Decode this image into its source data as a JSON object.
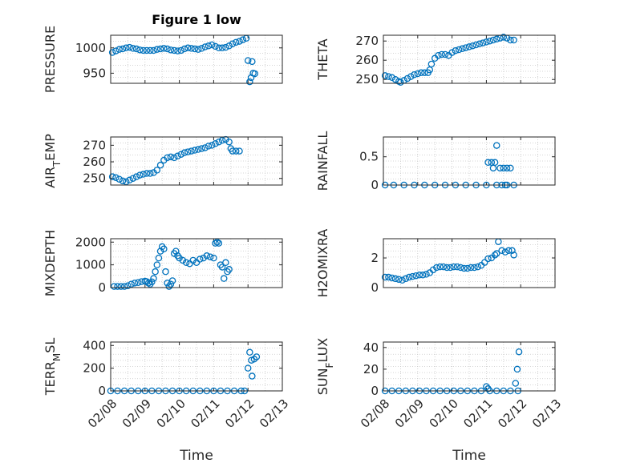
{
  "figure": {
    "title": "Figure 1 low",
    "marker_color": "#0072BD",
    "axis_color": "#262626",
    "grid_color": "#c8c8c8"
  },
  "chart_data": [
    {
      "type": "scatter",
      "ylabel": "PRESSURE",
      "ylim": [
        930,
        1025
      ],
      "yticks": [
        950,
        1000
      ],
      "ytick_labels": [
        "950",
        "1000"
      ],
      "xlim": [
        0,
        5
      ],
      "grid": true,
      "points": [
        [
          0.05,
          991
        ],
        [
          0.15,
          994
        ],
        [
          0.25,
          997
        ],
        [
          0.35,
          998
        ],
        [
          0.45,
          1000
        ],
        [
          0.55,
          1001
        ],
        [
          0.65,
          999
        ],
        [
          0.75,
          998
        ],
        [
          0.85,
          996
        ],
        [
          0.95,
          995
        ],
        [
          1.05,
          995
        ],
        [
          1.15,
          995
        ],
        [
          1.25,
          995
        ],
        [
          1.35,
          997
        ],
        [
          1.45,
          998
        ],
        [
          1.55,
          999
        ],
        [
          1.65,
          998
        ],
        [
          1.75,
          996
        ],
        [
          1.85,
          995
        ],
        [
          1.95,
          994
        ],
        [
          2.05,
          995
        ],
        [
          2.15,
          998
        ],
        [
          2.25,
          1000
        ],
        [
          2.35,
          999
        ],
        [
          2.45,
          998
        ],
        [
          2.55,
          997
        ],
        [
          2.65,
          999
        ],
        [
          2.75,
          1002
        ],
        [
          2.85,
          1004
        ],
        [
          2.95,
          1006
        ],
        [
          3.05,
          1003
        ],
        [
          3.15,
          1000
        ],
        [
          3.25,
          1000
        ],
        [
          3.35,
          1001
        ],
        [
          3.45,
          1004
        ],
        [
          3.55,
          1008
        ],
        [
          3.65,
          1011
        ],
        [
          3.75,
          1013
        ],
        [
          3.85,
          1016
        ],
        [
          3.95,
          1019
        ],
        [
          4.0,
          975
        ],
        [
          4.05,
          933
        ],
        [
          4.09,
          941
        ],
        [
          4.12,
          973
        ],
        [
          4.15,
          950
        ],
        [
          4.2,
          949
        ]
      ]
    },
    {
      "type": "scatter",
      "ylabel": "THETA",
      "ylim": [
        248,
        273
      ],
      "yticks": [
        250,
        260,
        270
      ],
      "ytick_labels": [
        "250",
        "260",
        "270"
      ],
      "xlim": [
        0,
        5
      ],
      "grid": true,
      "points": [
        [
          0.05,
          252
        ],
        [
          0.15,
          251.5
        ],
        [
          0.25,
          251
        ],
        [
          0.35,
          250
        ],
        [
          0.45,
          249
        ],
        [
          0.5,
          248.5
        ],
        [
          0.6,
          249.5
        ],
        [
          0.7,
          250.5
        ],
        [
          0.8,
          251.5
        ],
        [
          0.9,
          252.5
        ],
        [
          1.0,
          253
        ],
        [
          1.1,
          253.5
        ],
        [
          1.2,
          253.5
        ],
        [
          1.3,
          253.5
        ],
        [
          1.35,
          255
        ],
        [
          1.4,
          258
        ],
        [
          1.5,
          261
        ],
        [
          1.6,
          262.5
        ],
        [
          1.7,
          263
        ],
        [
          1.8,
          263
        ],
        [
          1.9,
          262.5
        ],
        [
          2.0,
          264
        ],
        [
          2.1,
          265
        ],
        [
          2.2,
          265.5
        ],
        [
          2.3,
          266
        ],
        [
          2.4,
          266.5
        ],
        [
          2.5,
          267
        ],
        [
          2.6,
          267.5
        ],
        [
          2.7,
          268
        ],
        [
          2.8,
          268.5
        ],
        [
          2.9,
          269
        ],
        [
          3.0,
          269.5
        ],
        [
          3.1,
          270
        ],
        [
          3.2,
          270.5
        ],
        [
          3.3,
          271
        ],
        [
          3.4,
          271.5
        ],
        [
          3.5,
          272
        ],
        [
          3.6,
          271.5
        ],
        [
          3.7,
          270.5
        ],
        [
          3.8,
          270.5
        ]
      ]
    },
    {
      "type": "scatter",
      "ylabel": "AIR_TEMP",
      "ylabel_parts": [
        "AIR",
        "T",
        "EMP"
      ],
      "ylim": [
        246,
        275
      ],
      "yticks": [
        250,
        260,
        270
      ],
      "ytick_labels": [
        "250",
        "260",
        "270"
      ],
      "xlim": [
        0,
        5
      ],
      "grid": true,
      "points": [
        [
          0.05,
          251
        ],
        [
          0.15,
          250.5
        ],
        [
          0.25,
          249.5
        ],
        [
          0.35,
          248.5
        ],
        [
          0.45,
          248
        ],
        [
          0.55,
          249
        ],
        [
          0.65,
          250
        ],
        [
          0.75,
          251
        ],
        [
          0.85,
          252
        ],
        [
          0.95,
          252.5
        ],
        [
          1.05,
          253
        ],
        [
          1.15,
          253
        ],
        [
          1.25,
          253.5
        ],
        [
          1.35,
          255
        ],
        [
          1.45,
          258
        ],
        [
          1.55,
          261
        ],
        [
          1.65,
          262.5
        ],
        [
          1.75,
          263
        ],
        [
          1.85,
          262.5
        ],
        [
          1.95,
          263.5
        ],
        [
          2.05,
          264.5
        ],
        [
          2.15,
          265.5
        ],
        [
          2.25,
          266
        ],
        [
          2.35,
          266.5
        ],
        [
          2.45,
          267
        ],
        [
          2.55,
          267.5
        ],
        [
          2.65,
          268
        ],
        [
          2.75,
          268.5
        ],
        [
          2.85,
          269.5
        ],
        [
          2.95,
          270
        ],
        [
          3.05,
          271
        ],
        [
          3.15,
          272
        ],
        [
          3.25,
          273
        ],
        [
          3.35,
          273.5
        ],
        [
          3.45,
          272
        ],
        [
          3.5,
          268
        ],
        [
          3.55,
          266.5
        ],
        [
          3.65,
          266.5
        ],
        [
          3.75,
          266.5
        ]
      ]
    },
    {
      "type": "scatter",
      "ylabel": "RAINFALL",
      "ylim": [
        0,
        0.85
      ],
      "yticks": [
        0,
        0.5
      ],
      "ytick_labels": [
        "0",
        "0.5"
      ],
      "xlim": [
        0,
        5
      ],
      "grid": true,
      "points": [
        [
          0.05,
          0
        ],
        [
          0.3,
          0
        ],
        [
          0.6,
          0
        ],
        [
          0.9,
          0
        ],
        [
          1.2,
          0
        ],
        [
          1.5,
          0
        ],
        [
          1.8,
          0
        ],
        [
          2.1,
          0
        ],
        [
          2.4,
          0
        ],
        [
          2.7,
          0
        ],
        [
          3.0,
          0
        ],
        [
          3.3,
          0
        ],
        [
          3.6,
          0
        ],
        [
          3.8,
          0
        ],
        [
          3.05,
          0.4
        ],
        [
          3.15,
          0.4
        ],
        [
          3.2,
          0.3
        ],
        [
          3.25,
          0.4
        ],
        [
          3.3,
          0.7
        ],
        [
          3.4,
          0.3
        ],
        [
          3.5,
          0.3
        ],
        [
          3.6,
          0.3
        ],
        [
          3.7,
          0.3
        ],
        [
          3.55,
          0
        ],
        [
          3.45,
          0
        ]
      ]
    },
    {
      "type": "scatter",
      "ylabel": "MIXDEPTH",
      "ylim": [
        0,
        2150
      ],
      "yticks": [
        0,
        1000,
        2000
      ],
      "ytick_labels": [
        "0",
        "1000",
        "2000"
      ],
      "xlim": [
        0,
        5
      ],
      "grid": true,
      "points": [
        [
          0.1,
          50
        ],
        [
          0.2,
          50
        ],
        [
          0.3,
          50
        ],
        [
          0.4,
          50
        ],
        [
          0.5,
          80
        ],
        [
          0.6,
          150
        ],
        [
          0.7,
          200
        ],
        [
          0.8,
          220
        ],
        [
          0.9,
          260
        ],
        [
          1.0,
          280
        ],
        [
          1.05,
          260
        ],
        [
          1.1,
          200
        ],
        [
          1.15,
          150
        ],
        [
          1.2,
          250
        ],
        [
          1.25,
          400
        ],
        [
          1.3,
          700
        ],
        [
          1.35,
          1000
        ],
        [
          1.4,
          1300
        ],
        [
          1.45,
          1600
        ],
        [
          1.5,
          1800
        ],
        [
          1.55,
          1700
        ],
        [
          1.6,
          700
        ],
        [
          1.65,
          200
        ],
        [
          1.7,
          50
        ],
        [
          1.75,
          150
        ],
        [
          1.8,
          300
        ],
        [
          1.85,
          1500
        ],
        [
          1.9,
          1600
        ],
        [
          1.95,
          1400
        ],
        [
          2.0,
          1300
        ],
        [
          2.1,
          1200
        ],
        [
          2.2,
          1100
        ],
        [
          2.3,
          1050
        ],
        [
          2.4,
          1200
        ],
        [
          2.5,
          1100
        ],
        [
          2.6,
          1250
        ],
        [
          2.7,
          1300
        ],
        [
          2.8,
          1400
        ],
        [
          2.9,
          1350
        ],
        [
          3.0,
          1300
        ],
        [
          3.05,
          1950
        ],
        [
          3.1,
          2000
        ],
        [
          3.15,
          1950
        ],
        [
          3.2,
          1000
        ],
        [
          3.25,
          900
        ],
        [
          3.3,
          400
        ],
        [
          3.35,
          1100
        ],
        [
          3.4,
          700
        ],
        [
          3.45,
          800
        ]
      ]
    },
    {
      "type": "scatter",
      "ylabel": "H2OMIXRA",
      "ylim": [
        0,
        3.3
      ],
      "yticks": [
        0,
        2
      ],
      "ytick_labels": [
        "0",
        "2"
      ],
      "xlim": [
        0,
        5
      ],
      "grid": true,
      "points": [
        [
          0.05,
          0.7
        ],
        [
          0.15,
          0.7
        ],
        [
          0.25,
          0.65
        ],
        [
          0.35,
          0.6
        ],
        [
          0.45,
          0.55
        ],
        [
          0.55,
          0.5
        ],
        [
          0.65,
          0.6
        ],
        [
          0.75,
          0.7
        ],
        [
          0.85,
          0.75
        ],
        [
          0.95,
          0.8
        ],
        [
          1.05,
          0.85
        ],
        [
          1.15,
          0.85
        ],
        [
          1.25,
          0.9
        ],
        [
          1.35,
          1.0
        ],
        [
          1.45,
          1.2
        ],
        [
          1.55,
          1.35
        ],
        [
          1.65,
          1.4
        ],
        [
          1.75,
          1.4
        ],
        [
          1.85,
          1.35
        ],
        [
          1.95,
          1.35
        ],
        [
          2.05,
          1.4
        ],
        [
          2.15,
          1.4
        ],
        [
          2.25,
          1.35
        ],
        [
          2.35,
          1.3
        ],
        [
          2.45,
          1.3
        ],
        [
          2.55,
          1.35
        ],
        [
          2.65,
          1.35
        ],
        [
          2.75,
          1.4
        ],
        [
          2.85,
          1.5
        ],
        [
          2.95,
          1.7
        ],
        [
          3.05,
          1.95
        ],
        [
          3.15,
          2.0
        ],
        [
          3.25,
          2.2
        ],
        [
          3.3,
          2.3
        ],
        [
          3.35,
          3.1
        ],
        [
          3.45,
          2.5
        ],
        [
          3.55,
          2.4
        ],
        [
          3.65,
          2.5
        ],
        [
          3.75,
          2.5
        ],
        [
          3.8,
          2.2
        ]
      ]
    },
    {
      "type": "scatter",
      "ylabel": "TERR_MSL",
      "ylabel_parts": [
        "TERR",
        "M",
        "SL"
      ],
      "ylim": [
        0,
        430
      ],
      "yticks": [
        0,
        200,
        400
      ],
      "ytick_labels": [
        "0",
        "200",
        "400"
      ],
      "xticks": [
        0,
        1,
        2,
        3,
        4,
        5
      ],
      "xtick_labels": [
        "02/08",
        "02/09",
        "02/10",
        "02/11",
        "02/12",
        "02/13"
      ],
      "xlabel": "Time",
      "xlim": [
        0,
        5
      ],
      "grid": true,
      "points": [
        [
          0.0,
          0
        ],
        [
          0.2,
          0
        ],
        [
          0.4,
          0
        ],
        [
          0.6,
          0
        ],
        [
          0.8,
          0
        ],
        [
          1.0,
          0
        ],
        [
          1.2,
          0
        ],
        [
          1.4,
          0
        ],
        [
          1.6,
          0
        ],
        [
          1.8,
          0
        ],
        [
          2.0,
          0
        ],
        [
          2.2,
          0
        ],
        [
          2.4,
          0
        ],
        [
          2.6,
          0
        ],
        [
          2.8,
          0
        ],
        [
          3.0,
          0
        ],
        [
          3.2,
          0
        ],
        [
          3.4,
          0
        ],
        [
          3.6,
          0
        ],
        [
          3.8,
          0
        ],
        [
          3.9,
          0
        ],
        [
          4.0,
          200
        ],
        [
          4.05,
          340
        ],
        [
          4.1,
          270
        ],
        [
          4.12,
          130
        ],
        [
          4.18,
          280
        ],
        [
          4.25,
          300
        ]
      ]
    },
    {
      "type": "scatter",
      "ylabel": "SUN_FLUX",
      "ylabel_parts": [
        "SUN",
        "F",
        "LUX"
      ],
      "ylim": [
        0,
        45
      ],
      "yticks": [
        0,
        20,
        40
      ],
      "ytick_labels": [
        "0",
        "20",
        "40"
      ],
      "xticks": [
        0,
        1,
        2,
        3,
        4,
        5
      ],
      "xtick_labels": [
        "02/08",
        "02/09",
        "02/10",
        "02/11",
        "02/12",
        "02/13"
      ],
      "xlabel": "Time",
      "xlim": [
        0,
        5
      ],
      "grid": true,
      "points": [
        [
          0.05,
          0
        ],
        [
          0.25,
          0
        ],
        [
          0.45,
          0
        ],
        [
          0.65,
          0
        ],
        [
          0.85,
          0
        ],
        [
          1.05,
          0
        ],
        [
          1.25,
          0
        ],
        [
          1.45,
          0
        ],
        [
          1.65,
          0
        ],
        [
          1.85,
          0
        ],
        [
          2.05,
          0
        ],
        [
          2.25,
          0
        ],
        [
          2.45,
          0
        ],
        [
          2.65,
          0
        ],
        [
          2.85,
          0
        ],
        [
          3.0,
          4
        ],
        [
          3.05,
          2
        ],
        [
          3.1,
          0
        ],
        [
          3.3,
          0
        ],
        [
          3.5,
          0
        ],
        [
          3.7,
          0
        ],
        [
          3.85,
          7
        ],
        [
          3.9,
          20
        ],
        [
          3.95,
          36
        ],
        [
          3.92,
          0
        ]
      ]
    }
  ]
}
